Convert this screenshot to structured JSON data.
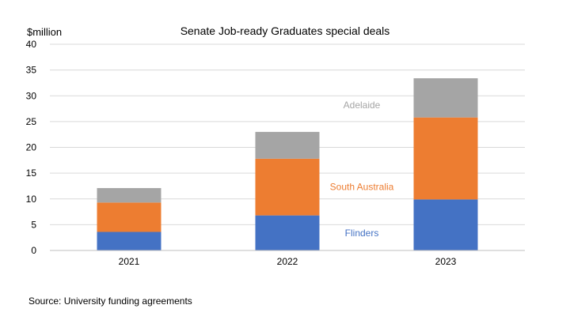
{
  "chart_data": {
    "type": "bar",
    "stacked": true,
    "title": "Senate Job-ready Graduates special deals",
    "ylabel": "$million",
    "xlabel": "",
    "source": "Source: University funding agreements",
    "categories": [
      "2021",
      "2022",
      "2023"
    ],
    "ylim": [
      0,
      40
    ],
    "yticks": [
      0,
      5,
      10,
      15,
      20,
      25,
      30,
      35,
      40
    ],
    "grid": true,
    "series": [
      {
        "name": "Flinders",
        "color": "#4472C4",
        "values": [
          3.6,
          6.8,
          9.9
        ]
      },
      {
        "name": "South Australia",
        "color": "#ED7D31",
        "values": [
          5.7,
          11.0,
          15.9
        ]
      },
      {
        "name": "Adelaide",
        "color": "#A5A5A5",
        "values": [
          2.8,
          5.2,
          7.6
        ]
      }
    ]
  }
}
